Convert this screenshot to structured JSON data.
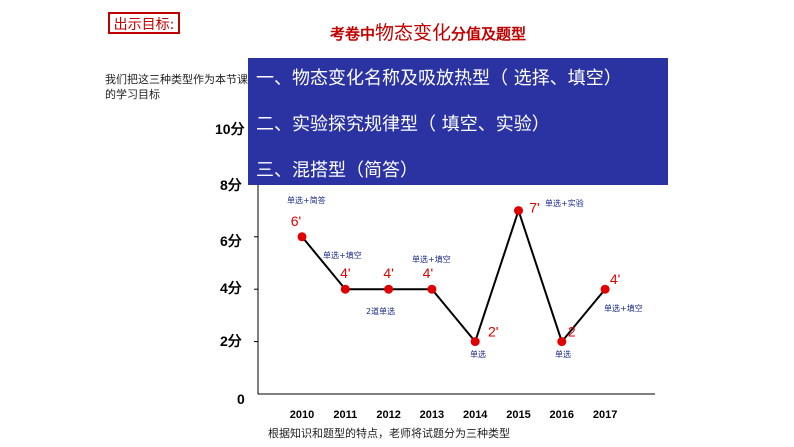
{
  "header": {
    "badge": "出示目标:",
    "title_prefix": "考卷中",
    "title_big": "物态变化",
    "title_suffix": "分值及题型"
  },
  "intro": "我们把这三种类型作为本节课的学习目标",
  "panel": {
    "color": "#2b33a3",
    "items": [
      "一、物态变化名称及吸放热型（ 选择、填空）",
      "二、实验探究规律型（ 填空、实验）",
      "三、混搭型（简答）"
    ]
  },
  "footer": "根据知识和题型的特点，老师将试题分为三种类型",
  "chart_data": {
    "type": "line",
    "x": [
      "2010",
      "2011",
      "2012",
      "2013",
      "2014",
      "2015",
      "2016",
      "2017"
    ],
    "y": [
      6,
      4,
      4,
      4,
      2,
      7,
      2,
      4
    ],
    "value_labels": [
      "6'",
      "4'",
      "4'",
      "4'",
      "2'",
      "7'",
      "2",
      "4'"
    ],
    "annotations": [
      "单选+简答",
      "单选+填空",
      "2道单选",
      "单选+填空",
      "单选",
      "单选+实验",
      "单选",
      "单选+填空"
    ],
    "yticks": [
      "0",
      "2分",
      "4分",
      "6分",
      "8分",
      "10分"
    ],
    "ylim": [
      0,
      10
    ],
    "line_color": "#000000",
    "marker_color": "#e00000"
  }
}
